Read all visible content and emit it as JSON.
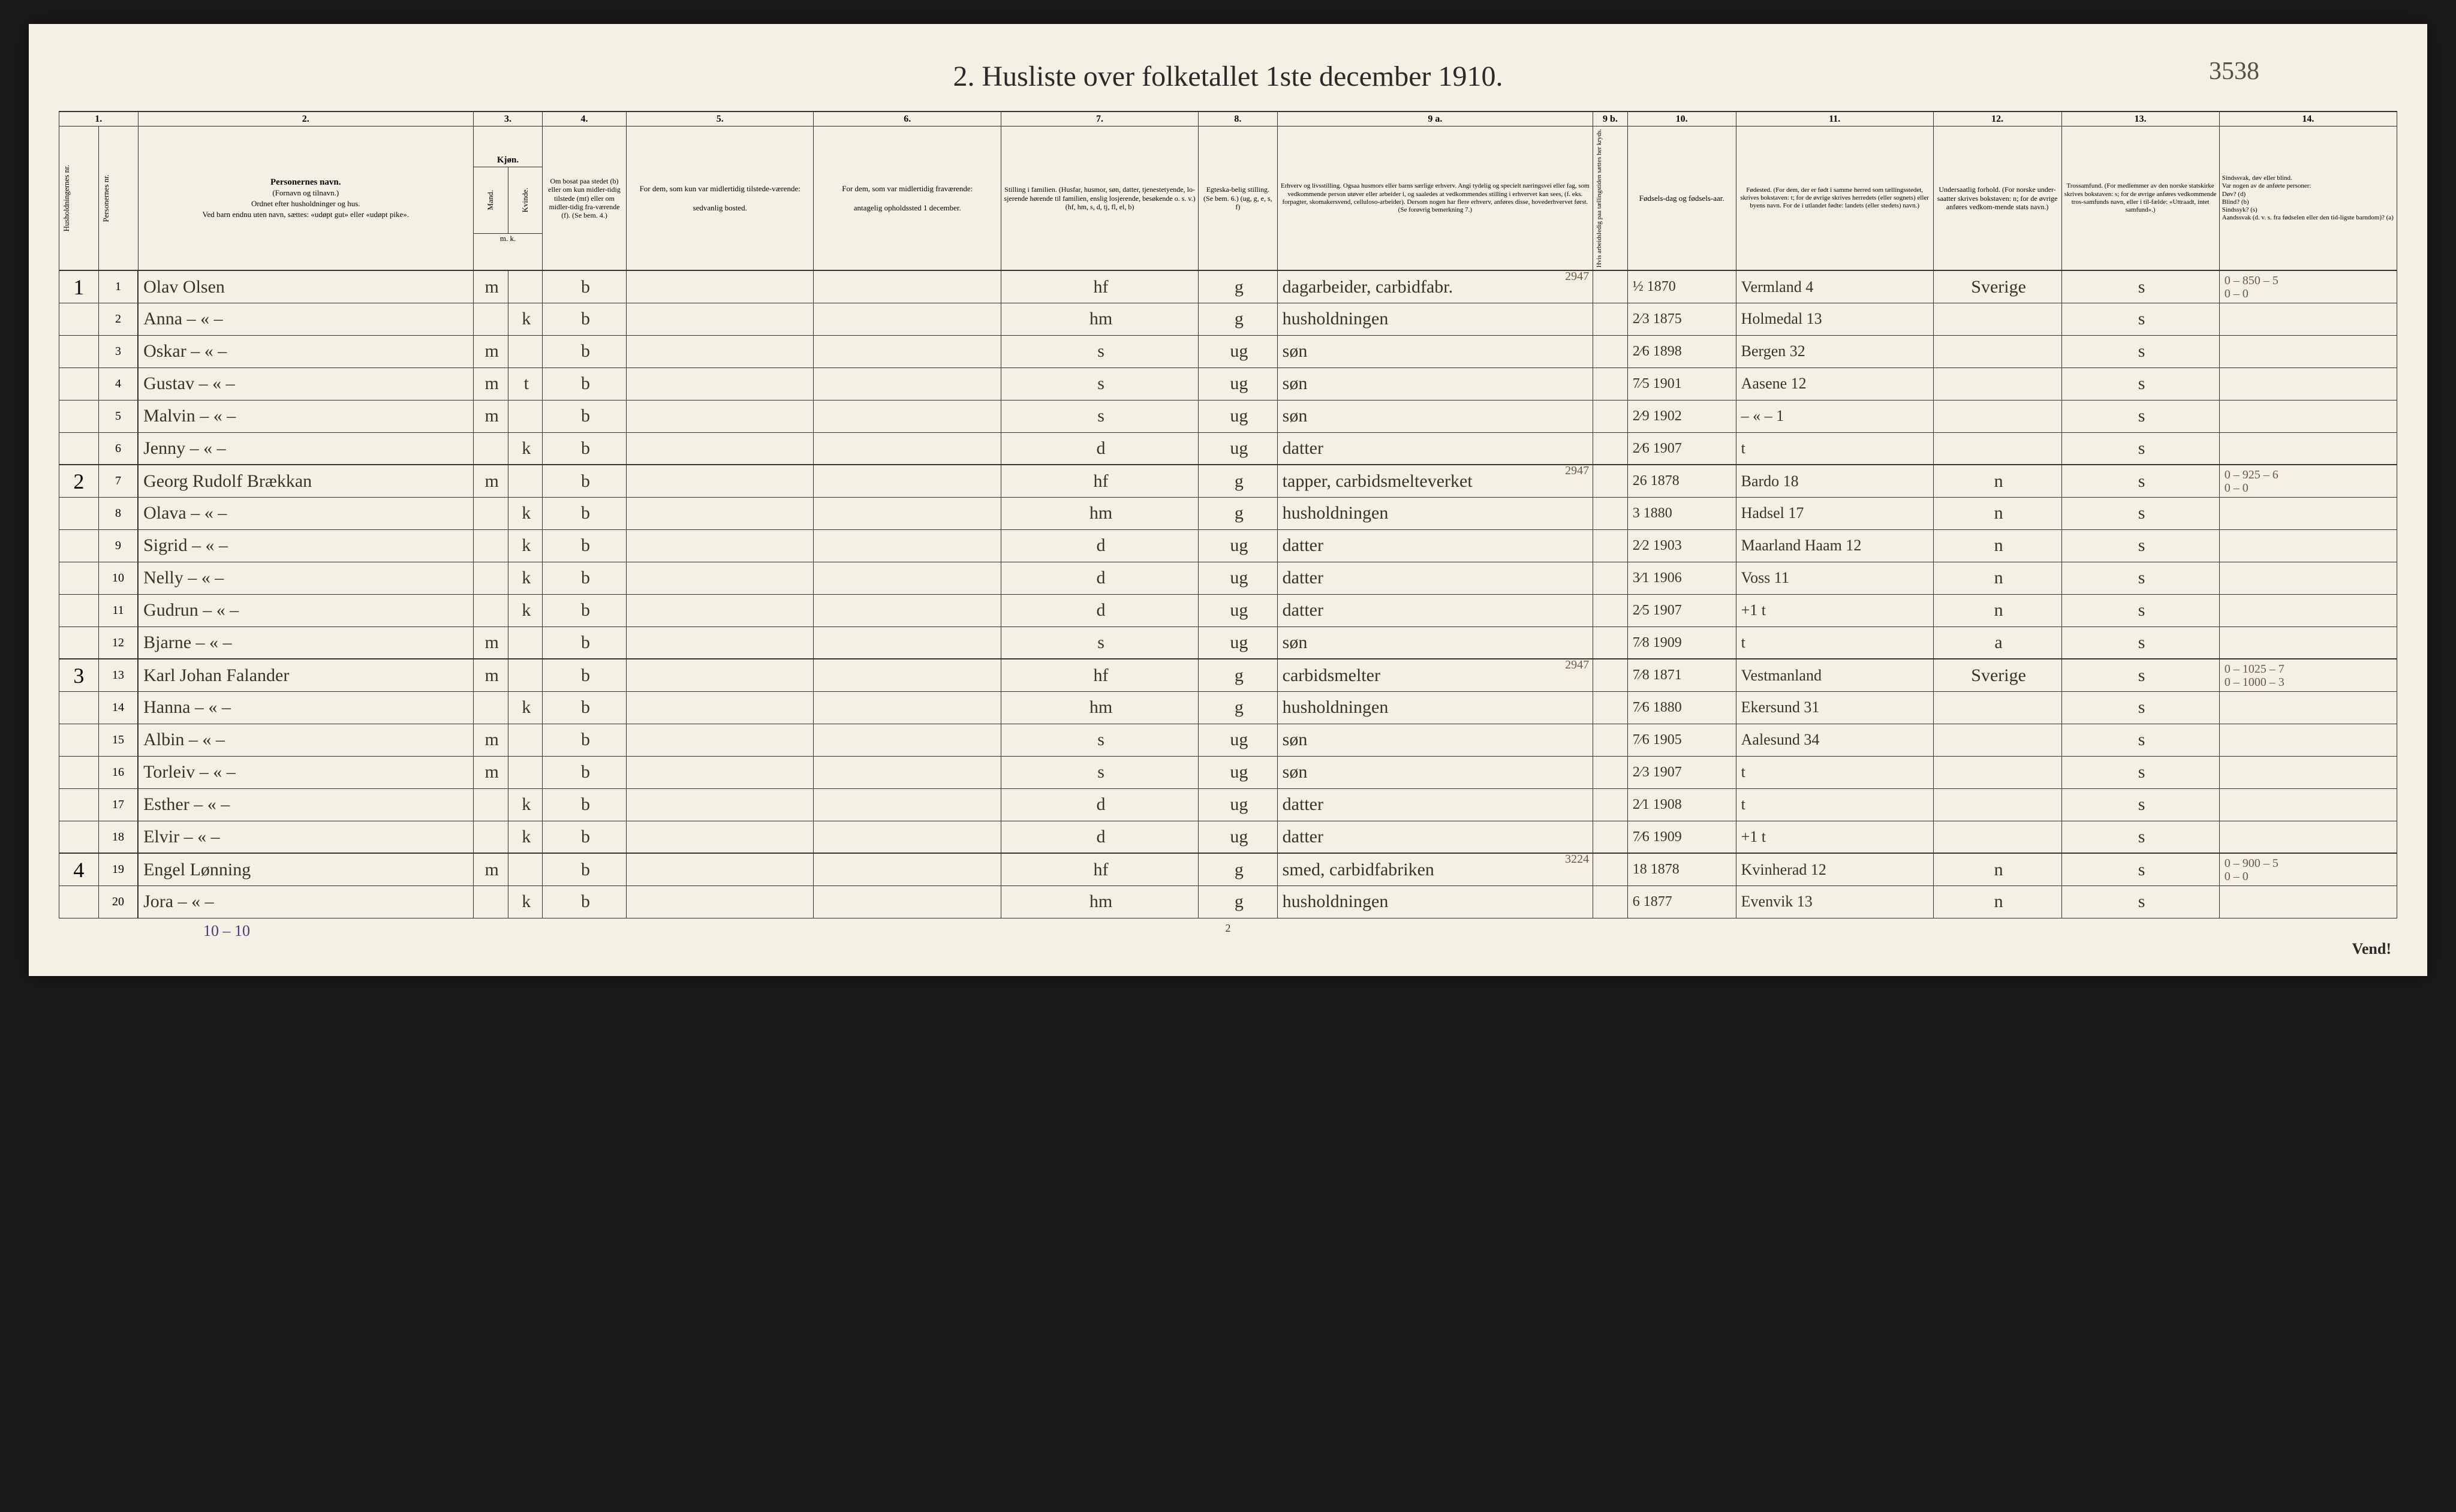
{
  "page_annotation": "3538",
  "title": "2.  Husliste over folketallet 1ste december 1910.",
  "columns": {
    "nums": [
      "1.",
      "2.",
      "3.",
      "4.",
      "5.",
      "6.",
      "7.",
      "8.",
      "9 a.",
      "9 b.",
      "10.",
      "11.",
      "12.",
      "13.",
      "14."
    ],
    "headers": {
      "c1a": "Husholdningernes nr.",
      "c1b": "Personernes nr.",
      "c2_title": "Personernes navn.",
      "c2_sub": "(Fornavn og tilnavn.)\nOrdnet efter husholdninger og hus.\nVed barn endnu uten navn, sættes: «udøpt gut» eller «udøpt pike».",
      "c3_title": "Kjøn.",
      "c3a": "Mand.",
      "c3b": "Kvinde.",
      "c3_foot": "m.   k.",
      "c4": "Om bosat paa stedet (b) eller om kun midler-tidig tilstede (mt) eller om midler-tidig fra-værende (f). (Se bem. 4.)",
      "c5": "For dem, som kun var midlertidig tilstede-værende:\n\nsedvanlig bosted.",
      "c6": "For dem, som var midlertidig fraværende:\n\nantagelig opholdssted 1 december.",
      "c7": "Stilling i familien.\n(Husfar, husmor, søn, datter, tjenestetyende, lo-sjerende hørende til familien, enslig losjerende, besøkende o. s. v.)\n(hf, hm, s, d, tj, fl, el, b)",
      "c8": "Egteska-belig stilling.\n(Se bem. 6.)\n(ug, g, e, s, f)",
      "c9a": "Erhverv og livsstilling.\nOgsaa husmors eller barns særlige erhverv. Angi tydelig og specielt næringsvei eller fag, som vedkommende person utøver eller arbeider i, og saaledes at vedkommendes stilling i erhvervet kan sees, (f. eks. forpagter, skomakersvend, celluloso-arbeider). Dersom nogen har flere erhverv, anføres disse, hovederhvervet først.\n(Se forøvrig bemerkning 7.)",
      "c9b": "Hvis arbeidsledig paa tællingstiden sættes her kryds.",
      "c10": "Fødsels-dag og fødsels-aar.",
      "c11": "Fødested.\n(For dem, der er født i samme herred som tællingsstedet, skrives bokstaven: t; for de øvrige skrives herredets (eller sognets) eller byens navn. For de i utlandet fødte: landets (eller stedets) navn.)",
      "c12": "Undersaatlig forhold.\n(For norske under-saatter skrives bokstaven: n; for de øvrige anføres vedkom-mende stats navn.)",
      "c13": "Trossamfund.\n(For medlemmer av den norske statskirke skrives bokstaven: s; for de øvrige anføres vedkommende tros-samfunds navn, eller i til-fælde: «Uttraadt, intet samfund».)",
      "c14": "Sindssvak, døv eller blind.\nVar nogen av de anførte personer:\nDøv?      (d)\nBlind?     (b)\nSindssyk? (s)\nAandssvak (d. v. s. fra fødselen eller den tid-ligste barndom)? (a)"
    }
  },
  "rows": [
    {
      "hh": "1",
      "pn": "1",
      "name": "Olav Olsen",
      "sex_m": "m",
      "sex_k": "",
      "res": "b",
      "c5": "",
      "c6": "",
      "rel": "hf",
      "mar": "g",
      "occ": "dagarbeider, carbidfabr.",
      "occ_extra": "2947",
      "c9b": "",
      "bd": "½ 1870",
      "bp": "Vermland 4",
      "nat": "Sverige",
      "rel13": "s",
      "c14": "0 – 850 – 5\n0 – 0"
    },
    {
      "hh": "",
      "pn": "2",
      "name": "Anna  – « –",
      "sex_m": "",
      "sex_k": "k",
      "res": "b",
      "c5": "",
      "c6": "",
      "rel": "hm",
      "mar": "g",
      "occ": "husholdningen",
      "occ_extra": "",
      "c9b": "",
      "bd": "2⁄3 1875",
      "bp": "Holmedal 13",
      "nat": "",
      "rel13": "s",
      "c14": ""
    },
    {
      "hh": "",
      "pn": "3",
      "name": "Oskar  – « –",
      "sex_m": "m",
      "sex_k": "",
      "res": "b",
      "c5": "",
      "c6": "",
      "rel": "s",
      "mar": "ug",
      "occ": "søn",
      "occ_extra": "",
      "c9b": "",
      "bd": "2⁄6 1898",
      "bp": "Bergen 32",
      "nat": "",
      "rel13": "s",
      "c14": ""
    },
    {
      "hh": "",
      "pn": "4",
      "name": "Gustav  – « –",
      "sex_m": "m",
      "sex_k": "t",
      "res": "b",
      "c5": "",
      "c6": "",
      "rel": "s",
      "mar": "ug",
      "occ": "søn",
      "occ_extra": "",
      "c9b": "",
      "bd": "7⁄5 1901",
      "bp": "Aasene 12",
      "nat": "",
      "rel13": "s",
      "c14": ""
    },
    {
      "hh": "",
      "pn": "5",
      "name": "Malvin  – « –",
      "sex_m": "m",
      "sex_k": "",
      "res": "b",
      "c5": "",
      "c6": "",
      "rel": "s",
      "mar": "ug",
      "occ": "søn",
      "occ_extra": "",
      "c9b": "",
      "bd": "2⁄9 1902",
      "bp": "– « –   1",
      "nat": "",
      "rel13": "s",
      "c14": ""
    },
    {
      "hh": "",
      "pn": "6",
      "name": "Jenny  – « –",
      "sex_m": "",
      "sex_k": "k",
      "res": "b",
      "c5": "",
      "c6": "",
      "rel": "d",
      "mar": "ug",
      "occ": "datter",
      "occ_extra": "",
      "c9b": "",
      "bd": "2⁄6 1907",
      "bp": "t",
      "nat": "",
      "rel13": "s",
      "c14": ""
    },
    {
      "hh": "2",
      "pn": "7",
      "name": "Georg Rudolf Brækkan",
      "sex_m": "m",
      "sex_k": "",
      "res": "b",
      "c5": "",
      "c6": "",
      "rel": "hf",
      "mar": "g",
      "occ": "tapper, carbidsmelteverket",
      "occ_extra": "2947",
      "c9b": "",
      "bd": "26 1878",
      "bp": "Bardo 18",
      "nat": "n",
      "rel13": "s",
      "c14": "0 – 925 – 6\n0 – 0"
    },
    {
      "hh": "",
      "pn": "8",
      "name": "Olava  – « –",
      "sex_m": "",
      "sex_k": "k",
      "res": "b",
      "c5": "",
      "c6": "",
      "rel": "hm",
      "mar": "g",
      "occ": "husholdningen",
      "occ_extra": "",
      "c9b": "",
      "bd": "3 1880",
      "bp": "Hadsel 17",
      "nat": "n",
      "rel13": "s",
      "c14": ""
    },
    {
      "hh": "",
      "pn": "9",
      "name": "Sigrid  – « –",
      "sex_m": "",
      "sex_k": "k",
      "res": "b",
      "c5": "",
      "c6": "",
      "rel": "d",
      "mar": "ug",
      "occ": "datter",
      "occ_extra": "",
      "c9b": "",
      "bd": "2⁄2 1903",
      "bp": "Maarland Haam 12",
      "nat": "n",
      "rel13": "s",
      "c14": ""
    },
    {
      "hh": "",
      "pn": "10",
      "name": "Nelly  – « –",
      "sex_m": "",
      "sex_k": "k",
      "res": "b",
      "c5": "",
      "c6": "",
      "rel": "d",
      "mar": "ug",
      "occ": "datter",
      "occ_extra": "",
      "c9b": "",
      "bd": "3⁄1 1906",
      "bp": "Voss    11",
      "nat": "n",
      "rel13": "s",
      "c14": ""
    },
    {
      "hh": "",
      "pn": "11",
      "name": "Gudrun  – « –",
      "sex_m": "",
      "sex_k": "k",
      "res": "b",
      "c5": "",
      "c6": "",
      "rel": "d",
      "mar": "ug",
      "occ": "datter",
      "occ_extra": "",
      "c9b": "",
      "bd": "2⁄5 1907",
      "bp": "+1 t",
      "nat": "n",
      "rel13": "s",
      "c14": ""
    },
    {
      "hh": "",
      "pn": "12",
      "name": "Bjarne  – « –",
      "sex_m": "m",
      "sex_k": "",
      "res": "b",
      "c5": "",
      "c6": "",
      "rel": "s",
      "mar": "ug",
      "occ": "søn",
      "occ_extra": "",
      "c9b": "",
      "bd": "7⁄8 1909",
      "bp": "t",
      "nat": "a",
      "rel13": "s",
      "c14": ""
    },
    {
      "hh": "3",
      "pn": "13",
      "name": "Karl Johan Falander",
      "sex_m": "m",
      "sex_k": "",
      "res": "b",
      "c5": "",
      "c6": "",
      "rel": "hf",
      "mar": "g",
      "occ": "carbidsmelter",
      "occ_extra": "2947",
      "c9b": "",
      "bd": "7⁄8 1871",
      "bp": "Vestmanland",
      "nat": "Sverige",
      "rel13": "s",
      "c14": "0 – 1025 – 7\n0 – 1000 – 3"
    },
    {
      "hh": "",
      "pn": "14",
      "name": "Hanna  – « –",
      "sex_m": "",
      "sex_k": "k",
      "res": "b",
      "c5": "",
      "c6": "",
      "rel": "hm",
      "mar": "g",
      "occ": "husholdningen",
      "occ_extra": "",
      "c9b": "",
      "bd": "7⁄6 1880",
      "bp": "Ekersund 31",
      "nat": "",
      "rel13": "s",
      "c14": ""
    },
    {
      "hh": "",
      "pn": "15",
      "name": "Albin  – « –",
      "sex_m": "m",
      "sex_k": "",
      "res": "b",
      "c5": "",
      "c6": "",
      "rel": "s",
      "mar": "ug",
      "occ": "søn",
      "occ_extra": "",
      "c9b": "",
      "bd": "7⁄6 1905",
      "bp": "Aalesund 34",
      "nat": "",
      "rel13": "s",
      "c14": ""
    },
    {
      "hh": "",
      "pn": "16",
      "name": "Torleiv  – « –",
      "sex_m": "m",
      "sex_k": "",
      "res": "b",
      "c5": "",
      "c6": "",
      "rel": "s",
      "mar": "ug",
      "occ": "søn",
      "occ_extra": "",
      "c9b": "",
      "bd": "2⁄3 1907",
      "bp": "t",
      "nat": "",
      "rel13": "s",
      "c14": ""
    },
    {
      "hh": "",
      "pn": "17",
      "name": "Esther  – « –",
      "sex_m": "",
      "sex_k": "k",
      "res": "b",
      "c5": "",
      "c6": "",
      "rel": "d",
      "mar": "ug",
      "occ": "datter",
      "occ_extra": "",
      "c9b": "",
      "bd": "2⁄1 1908",
      "bp": "t",
      "nat": "",
      "rel13": "s",
      "c14": ""
    },
    {
      "hh": "",
      "pn": "18",
      "name": "Elvir  – « –",
      "sex_m": "",
      "sex_k": "k",
      "res": "b",
      "c5": "",
      "c6": "",
      "rel": "d",
      "mar": "ug",
      "occ": "datter",
      "occ_extra": "",
      "c9b": "",
      "bd": "7⁄6 1909",
      "bp": "+1 t",
      "nat": "",
      "rel13": "s",
      "c14": ""
    },
    {
      "hh": "4",
      "pn": "19",
      "name": "Engel     Lønning",
      "sex_m": "m",
      "sex_k": "",
      "res": "b",
      "c5": "",
      "c6": "",
      "rel": "hf",
      "mar": "g",
      "occ": "smed, carbidfabriken",
      "occ_extra": "3224",
      "c9b": "",
      "bd": "18 1878",
      "bp": "Kvinherad 12",
      "nat": "n",
      "rel13": "s",
      "c14": "0 – 900 – 5\n0 – 0"
    },
    {
      "hh": "",
      "pn": "20",
      "name": "Jora  – « –",
      "sex_m": "",
      "sex_k": "k",
      "res": "b",
      "c5": "",
      "c6": "",
      "rel": "hm",
      "mar": "g",
      "occ": "husholdningen",
      "occ_extra": "",
      "c9b": "",
      "bd": "6 1877",
      "bp": "Evenvik 13",
      "nat": "n",
      "rel13": "s",
      "c14": ""
    }
  ],
  "footer_tally": "10 – 10",
  "bottom_page_num": "2",
  "vend": "Vend!"
}
